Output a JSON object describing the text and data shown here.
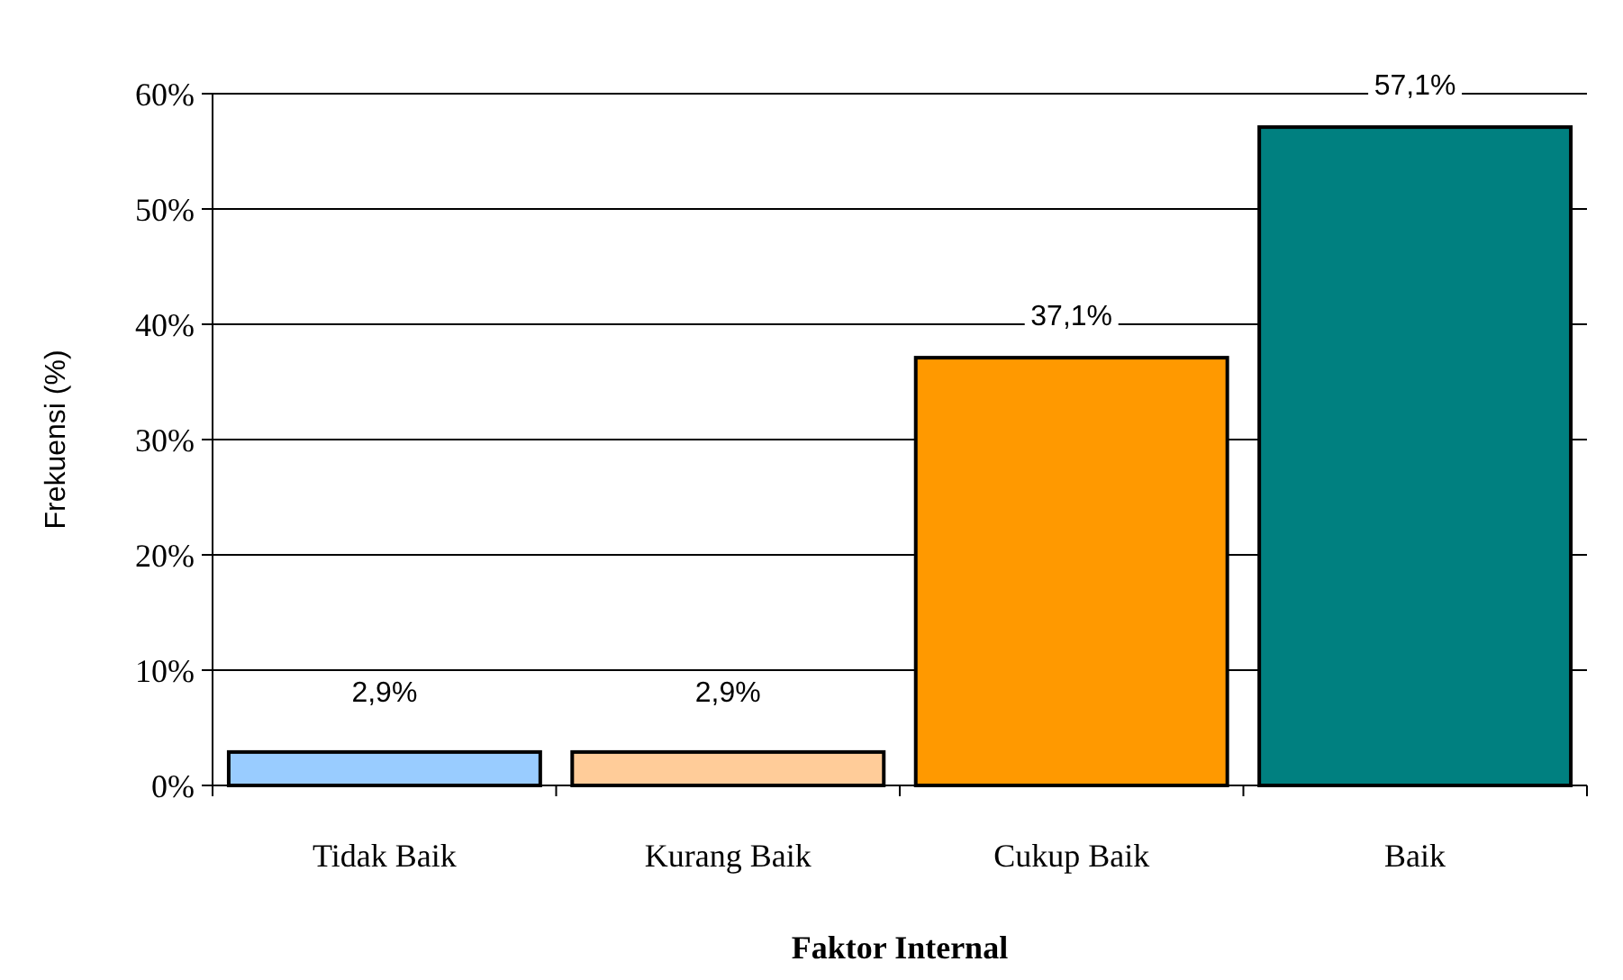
{
  "chart_data": {
    "type": "bar",
    "xlabel": "Faktor Internal",
    "ylabel": "Frekuensi (%)",
    "categories": [
      "Tidak Baik",
      "Kurang Baik",
      "Cukup Baik",
      "Baik"
    ],
    "values": [
      2.9,
      2.9,
      37.1,
      57.1
    ],
    "colors": [
      "#99ccff",
      "#ffcc99",
      "#ff9900",
      "#008080"
    ],
    "value_labels": [
      "2,9%",
      "2,9%",
      "37,1%",
      "57,1%"
    ],
    "ylim": [
      0,
      60
    ],
    "yticks": [
      {
        "value": 0,
        "label": "0%"
      },
      {
        "value": 10,
        "label": "10%"
      },
      {
        "value": 20,
        "label": "20%"
      },
      {
        "value": 30,
        "label": "30%"
      },
      {
        "value": 40,
        "label": "40%"
      },
      {
        "value": 50,
        "label": "50%"
      },
      {
        "value": 60,
        "label": "60%"
      }
    ],
    "grid": "y"
  }
}
